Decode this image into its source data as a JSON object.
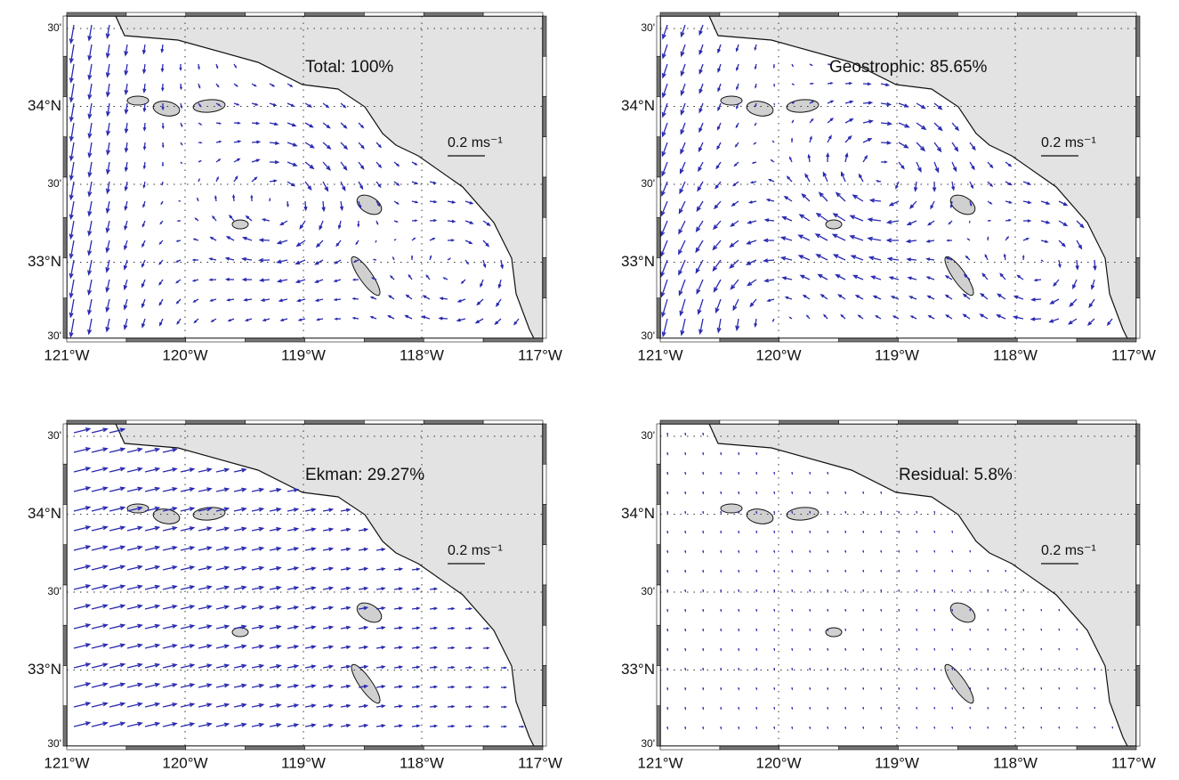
{
  "panels": [
    {
      "label": "Total: 100%",
      "scale_label": "0.2 ms⁻¹"
    },
    {
      "label": "Geostrophic: 85.65%",
      "scale_label": "0.2 ms⁻¹"
    },
    {
      "label": "Ekman: 29.27%",
      "scale_label": "0.2 ms⁻¹"
    },
    {
      "label": "Residual: 5.8%",
      "scale_label": "0.2 ms⁻¹"
    }
  ],
  "axes": {
    "y_labels": [
      "30'",
      "34°N",
      "30'",
      "33°N",
      "30'"
    ],
    "x_labels": [
      "121°W",
      "120°W",
      "119°W",
      "118°W",
      "117°W"
    ]
  }
}
